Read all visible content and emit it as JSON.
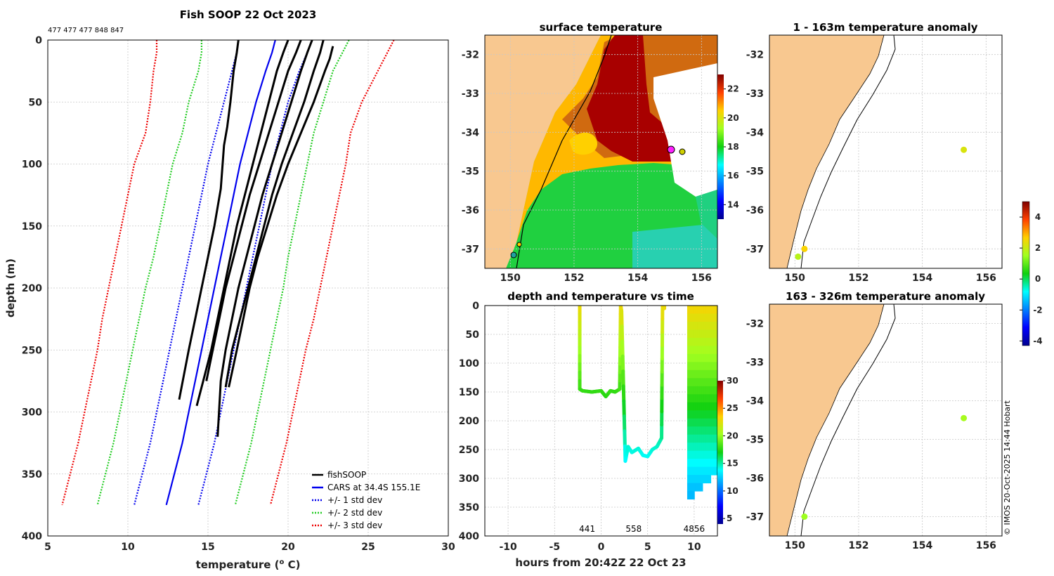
{
  "chart_data": [
    {
      "type": "line",
      "panel": "profiles",
      "title": "Fish SOOP 22 Oct 2023",
      "id_strip": "477 477 477 848 847",
      "xlabel": "temperature (",
      "xlabel_sup": "o",
      "xlabel_end": " C)",
      "ylabel": "depth (m)",
      "xlim": [
        5,
        30
      ],
      "ylim": [
        0,
        400
      ],
      "xticks": [
        "5",
        "10",
        "15",
        "20",
        "25",
        "30"
      ],
      "yticks": [
        "0",
        "50",
        "100",
        "150",
        "200",
        "250",
        "300",
        "350",
        "400"
      ],
      "legend_position": "bottom-right",
      "legend": [
        "fishSOOP",
        "CARS at 34.4S 155.1E",
        "+/- 1 std dev",
        "+/- 2 std dev",
        "+/- 3 std dev"
      ],
      "colors": {
        "fishsoop": "#000000",
        "cars": "#0000ee",
        "sd1": "#0000ee",
        "sd2": "#22cc22",
        "sd3": "#ee0000"
      },
      "depths": [
        0,
        10,
        25,
        50,
        75,
        100,
        125,
        150,
        175,
        200,
        225,
        250,
        275,
        300,
        325,
        350,
        375
      ],
      "cars_mean": [
        19.2,
        19.0,
        18.6,
        18.0,
        17.5,
        17.0,
        16.6,
        16.2,
        15.8,
        15.4,
        15.0,
        14.6,
        14.2,
        13.8,
        13.4,
        12.9,
        12.4
      ],
      "sd_offsets": [
        [
          2.3,
          2.2,
          2.1,
          2.0,
          2.0,
          2.0,
          2.0,
          2.0,
          2.0,
          2.0,
          2.0,
          2.0,
          2.0,
          2.0,
          2.0,
          2.0,
          2.0
        ],
        [
          4.6,
          4.4,
          4.2,
          4.2,
          4.1,
          4.2,
          4.2,
          4.2,
          4.2,
          4.3,
          4.3,
          4.3,
          4.3,
          4.3,
          4.3,
          4.3,
          4.3
        ],
        [
          7.4,
          7.2,
          7.0,
          6.6,
          6.4,
          6.6,
          6.6,
          6.6,
          6.6,
          6.6,
          6.6,
          6.5,
          6.5,
          6.5,
          6.5,
          6.5,
          6.5
        ]
      ],
      "fishsoop_profiles": [
        {
          "t": [
            16.9,
            16.8,
            16.6,
            16.4,
            16.2,
            16.0,
            15.8,
            15.4,
            15.0,
            14.6,
            14.2,
            13.8,
            13.5,
            13.2
          ],
          "d": [
            0,
            10,
            25,
            50,
            70,
            85,
            120,
            150,
            175,
            200,
            225,
            250,
            270,
            290
          ]
        },
        {
          "t": [
            20.0,
            19.7,
            19.3,
            18.8,
            18.3,
            17.8,
            17.3,
            16.8,
            16.4,
            16.0,
            15.6,
            15.2,
            14.7,
            14.3
          ],
          "d": [
            0,
            10,
            25,
            50,
            75,
            100,
            125,
            150,
            175,
            200,
            225,
            250,
            275,
            295
          ]
        },
        {
          "t": [
            21.5,
            21.2,
            20.8,
            20.2,
            19.6,
            19.0,
            18.4,
            17.9,
            17.4,
            16.9,
            16.5,
            16.1,
            15.8,
            15.6
          ],
          "d": [
            0,
            10,
            25,
            50,
            75,
            100,
            125,
            150,
            175,
            200,
            225,
            250,
            275,
            320
          ]
        },
        {
          "t": [
            22.2,
            22.0,
            21.6,
            21.0,
            20.3,
            19.6,
            19.0,
            18.5,
            18.0,
            17.5,
            17.0,
            16.5,
            16.1
          ],
          "d": [
            0,
            10,
            25,
            50,
            75,
            100,
            125,
            150,
            175,
            200,
            225,
            250,
            280
          ]
        },
        {
          "t": [
            22.8,
            22.6,
            22.3,
            21.6,
            20.8,
            20.0,
            19.3,
            18.7,
            18.1,
            17.6,
            17.2,
            16.8,
            16.3
          ],
          "d": [
            5,
            15,
            25,
            50,
            75,
            100,
            125,
            150,
            175,
            200,
            225,
            250,
            280
          ]
        },
        {
          "t": [
            20.8,
            20.5,
            20.0,
            19.4,
            18.8,
            18.2,
            17.6,
            17.1,
            16.6,
            16.1,
            15.7,
            15.3,
            14.9
          ],
          "d": [
            0,
            10,
            25,
            50,
            75,
            100,
            125,
            150,
            175,
            200,
            225,
            250,
            275
          ]
        }
      ]
    },
    {
      "type": "heatmap",
      "panel": "surface temperature map",
      "title": "surface temperature",
      "xlim": [
        149.2,
        156.5
      ],
      "ylim": [
        -37.5,
        -31.5
      ],
      "xticks": [
        "150",
        "152",
        "154",
        "156"
      ],
      "yticks": [
        "-32",
        "-33",
        "-34",
        "-35",
        "-36",
        "-37"
      ],
      "colorbar_ticks": [
        "22",
        "20",
        "18",
        "16",
        "14"
      ],
      "colorbar_range": [
        13,
        23
      ]
    },
    {
      "type": "scatter",
      "panel": "depth and temperature vs time",
      "title": "depth and temperature vs time",
      "xlabel": "hours from 20:42Z 22 Oct 23",
      "xlim": [
        -12.5,
        12.5
      ],
      "ylim": [
        0,
        400
      ],
      "xticks": [
        "-10",
        "-5",
        "0",
        "5",
        "10"
      ],
      "yticks": [
        "0",
        "50",
        "100",
        "150",
        "200",
        "250",
        "300",
        "350",
        "400"
      ],
      "colorbar_ticks": [
        "30",
        "25",
        "20",
        "15",
        "10",
        "5"
      ],
      "colorbar_range": [
        4,
        30
      ],
      "annotations": [
        {
          "text": "441",
          "x": -1.5
        },
        {
          "text": "558",
          "x": 3.5
        },
        {
          "text": "4856",
          "x": 10
        }
      ],
      "track_hours": [
        -2.3,
        -2.3,
        -2.0,
        -1.0,
        0.0,
        0.5,
        1.0,
        1.5,
        2.0,
        2.1,
        2.2,
        2.6,
        2.9,
        3.3,
        4.0,
        4.5,
        5.0,
        5.5,
        6.0,
        6.5,
        6.6,
        6.8,
        6.8
      ],
      "track_depth": [
        0,
        145,
        148,
        150,
        148,
        158,
        148,
        150,
        145,
        0,
        10,
        270,
        245,
        255,
        248,
        260,
        262,
        250,
        245,
        230,
        0,
        0,
        5
      ]
    },
    {
      "type": "scatter",
      "panel": "1 - 163m temperature anomaly",
      "title": "1 - 163m temperature anomaly",
      "xlim": [
        149.2,
        156.5
      ],
      "ylim": [
        -37.5,
        -31.5
      ],
      "xticks": [
        "150",
        "152",
        "154",
        "156"
      ],
      "yticks": [
        "-32",
        "-33",
        "-34",
        "-35",
        "-36",
        "-37"
      ],
      "points": [
        {
          "lon": 155.3,
          "lat": -34.45,
          "anom": 2.2
        },
        {
          "lon": 150.3,
          "lat": -37.0,
          "anom": 2.6
        },
        {
          "lon": 150.1,
          "lat": -37.2,
          "anom": 1.8
        }
      ]
    },
    {
      "type": "scatter",
      "panel": "163 - 326m temperature anomaly",
      "title": "163 - 326m temperature anomaly",
      "xlim": [
        149.2,
        156.5
      ],
      "ylim": [
        -37.5,
        -31.5
      ],
      "xticks": [
        "150",
        "152",
        "154",
        "156"
      ],
      "yticks": [
        "-32",
        "-33",
        "-34",
        "-35",
        "-36",
        "-37"
      ],
      "points": [
        {
          "lon": 155.3,
          "lat": -34.45,
          "anom": 1.6
        },
        {
          "lon": 150.3,
          "lat": -37.0,
          "anom": 1.5
        }
      ]
    },
    {
      "type": "heatmap",
      "panel": "anomaly colorbar",
      "colorbar_ticks": [
        "4",
        "2",
        "0",
        "-2",
        "-4"
      ],
      "colorbar_range": [
        -4.3,
        5
      ]
    }
  ],
  "footer": {
    "credit": "© IMOS 20-Oct-2025 14:44 Hobart"
  }
}
